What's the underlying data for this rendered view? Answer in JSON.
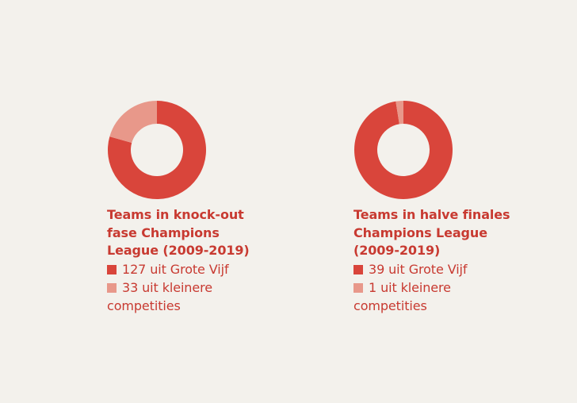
{
  "colors": {
    "background": "#f3f1ec",
    "text": "#c83a31",
    "major": "#d9453b",
    "minor": "#e8988a"
  },
  "chart_data": [
    {
      "type": "pie",
      "title": "Teams in knock-out fase Champions League (2009-2019)",
      "hole": true,
      "slices": [
        {
          "label": "127 uit Grote Vijf",
          "value": 127,
          "color": "#d9453b"
        },
        {
          "label": "33 uit kleinere competities",
          "value": 33,
          "color": "#e8988a"
        }
      ]
    },
    {
      "type": "pie",
      "title": "Teams in halve finales Champions League (2009-2019)",
      "hole": true,
      "slices": [
        {
          "label": "39 uit Grote Vijf",
          "value": 39,
          "color": "#d9453b"
        },
        {
          "label": "1 uit kleinere competities",
          "value": 1,
          "color": "#e8988a"
        }
      ]
    }
  ]
}
